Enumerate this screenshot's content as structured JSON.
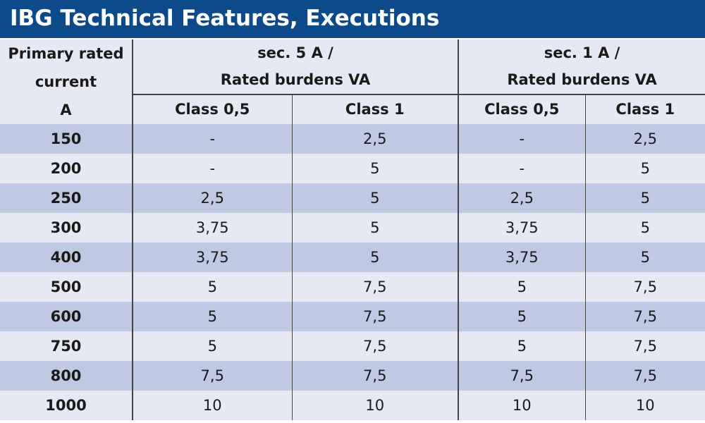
{
  "title": "IBG Technical Features, Executions",
  "header": {
    "primary_line1": "Primary rated",
    "primary_line2": "current",
    "primary_line3": "A",
    "group_5A_line1": "sec. 5 A /",
    "group_5A_line2": "Rated burdens VA",
    "group_1A_line1": "sec. 1 A /",
    "group_1A_line2": "Rated burdens VA",
    "class_05": "Class 0,5",
    "class_1": "Class 1"
  },
  "rows": [
    {
      "current": "150",
      "s5_c05": "-",
      "s5_c1": "2,5",
      "s1_c05": "-",
      "s1_c1": "2,5"
    },
    {
      "current": "200",
      "s5_c05": "-",
      "s5_c1": "5",
      "s1_c05": "-",
      "s1_c1": "5"
    },
    {
      "current": "250",
      "s5_c05": "2,5",
      "s5_c1": "5",
      "s1_c05": "2,5",
      "s1_c1": "5"
    },
    {
      "current": "300",
      "s5_c05": "3,75",
      "s5_c1": "5",
      "s1_c05": "3,75",
      "s1_c1": "5"
    },
    {
      "current": "400",
      "s5_c05": "3,75",
      "s5_c1": "5",
      "s1_c05": "3,75",
      "s1_c1": "5"
    },
    {
      "current": "500",
      "s5_c05": "5",
      "s5_c1": "7,5",
      "s1_c05": "5",
      "s1_c1": "7,5"
    },
    {
      "current": "600",
      "s5_c05": "5",
      "s5_c1": "7,5",
      "s1_c05": "5",
      "s1_c1": "7,5"
    },
    {
      "current": "750",
      "s5_c05": "5",
      "s5_c1": "7,5",
      "s1_c05": "5",
      "s1_c1": "7,5"
    },
    {
      "current": "800",
      "s5_c05": "7,5",
      "s5_c1": "7,5",
      "s1_c05": "7,5",
      "s1_c1": "7,5"
    },
    {
      "current": "1000",
      "s5_c05": "10",
      "s5_c1": "10",
      "s1_c05": "10",
      "s1_c1": "10"
    }
  ],
  "colors": {
    "title_bar": "#0d4a8a",
    "row_dark": "#bfcae2",
    "row_light": "#e6e9f3"
  }
}
